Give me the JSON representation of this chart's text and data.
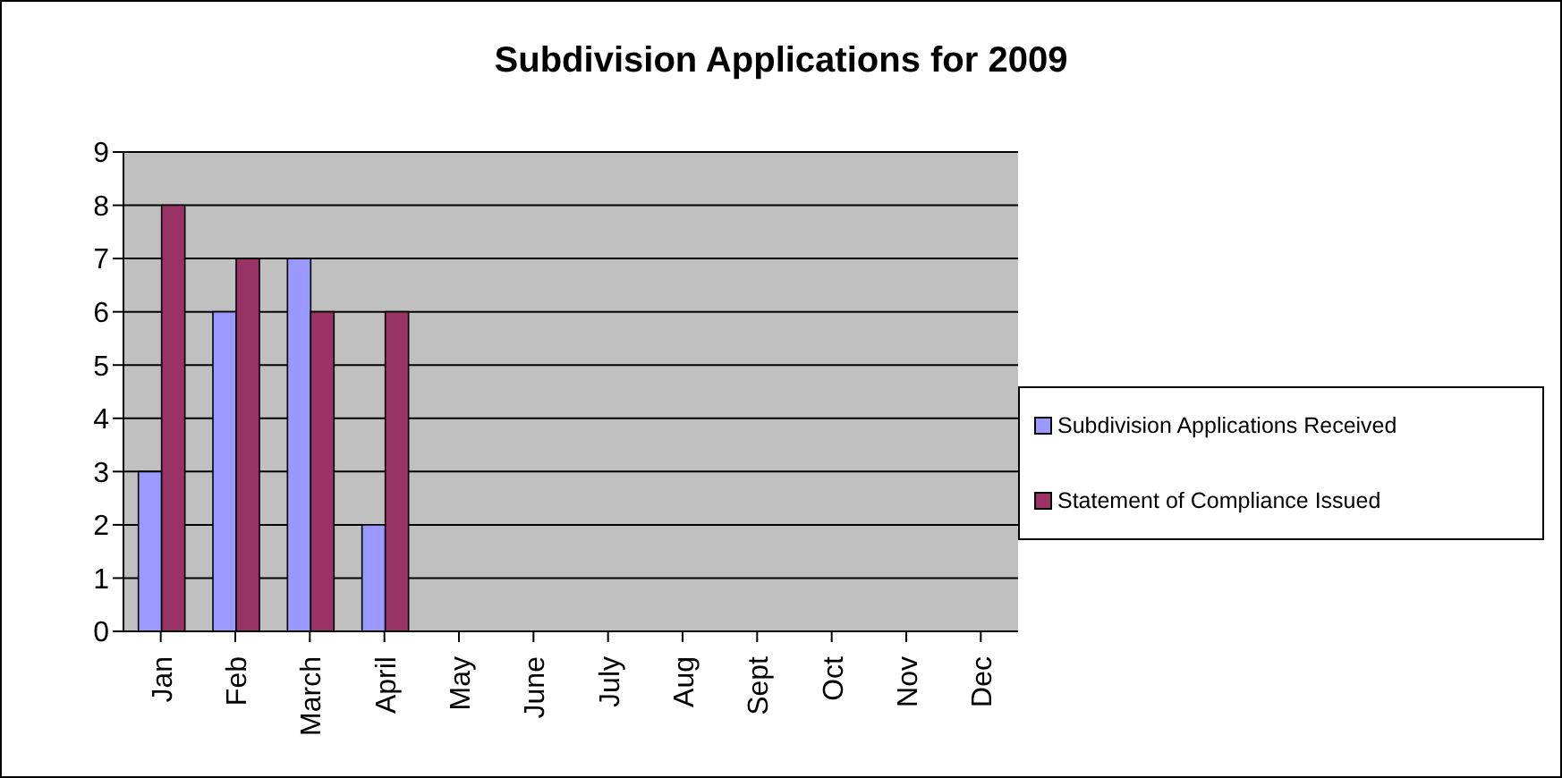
{
  "chart_data": {
    "type": "bar",
    "title": "Subdivision Applications for 2009",
    "categories": [
      "Jan",
      "Feb",
      "March",
      "April",
      "May",
      "June",
      "July",
      "Aug",
      "Sept",
      "Oct",
      "Nov",
      "Dec"
    ],
    "series": [
      {
        "name": "Subdivision Applications Received",
        "color": "#9999ff",
        "values": [
          3,
          6,
          7,
          2,
          null,
          null,
          null,
          null,
          null,
          null,
          null,
          null
        ]
      },
      {
        "name": "Statement of Compliance Issued",
        "color": "#993366",
        "values": [
          8,
          7,
          6,
          6,
          null,
          null,
          null,
          null,
          null,
          null,
          null,
          null
        ]
      }
    ],
    "ylim": [
      0,
      9
    ],
    "yticks": [
      0,
      1,
      2,
      3,
      4,
      5,
      6,
      7,
      8,
      9
    ],
    "grid": "y",
    "legend": "right"
  }
}
